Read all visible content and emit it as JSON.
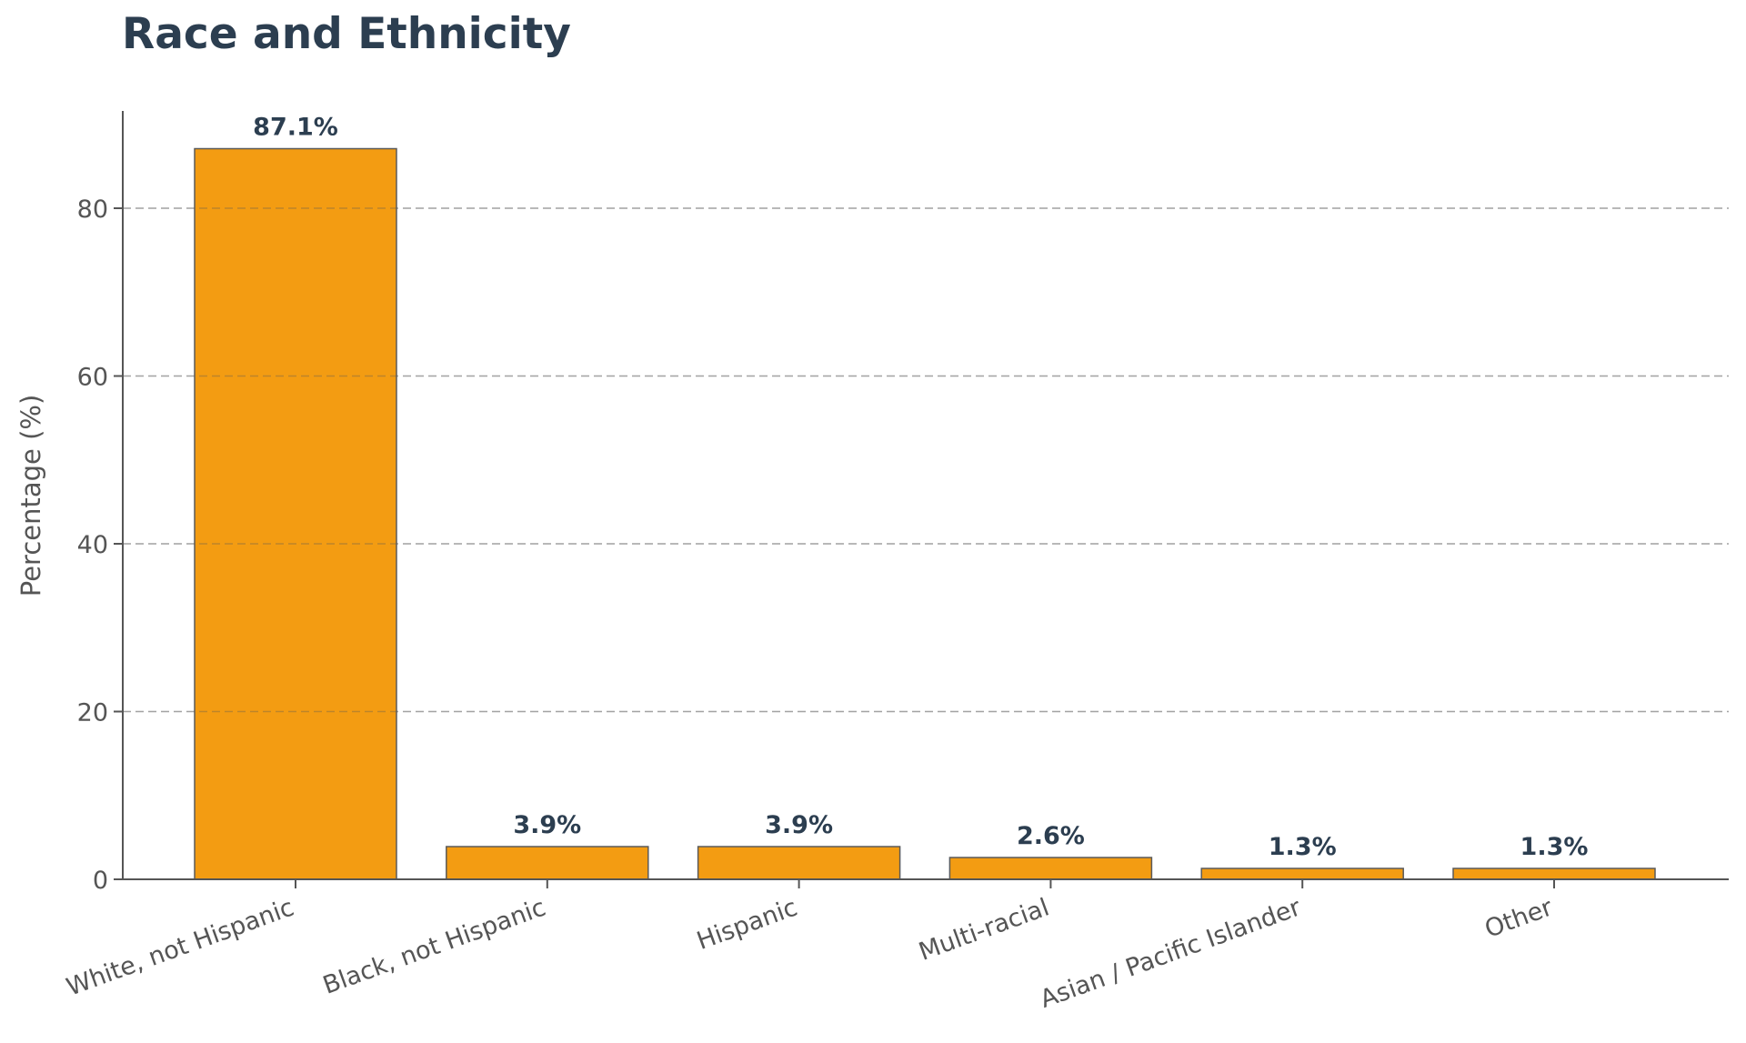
{
  "chart_data": {
    "type": "bar",
    "title": "Race and Ethnicity",
    "xlabel": "",
    "ylabel": "Percentage (%)",
    "categories": [
      "White, not Hispanic",
      "Black, not Hispanic",
      "Hispanic",
      "Multi-racial",
      "Asian / Pacific Islander",
      "Other"
    ],
    "values": [
      87.1,
      3.9,
      3.9,
      2.6,
      1.3,
      1.3
    ],
    "value_labels": [
      "87.1%",
      "3.9%",
      "3.9%",
      "2.6%",
      "1.3%",
      "1.3%"
    ],
    "ylim": [
      0,
      91.5
    ],
    "yticks": [
      0,
      20,
      40,
      60,
      80
    ],
    "ytick_labels": [
      "0",
      "20",
      "40",
      "60",
      "80"
    ],
    "grid": "horizontal dashed",
    "legend": "none",
    "colors": {
      "bar": "#f39c12",
      "bar_edge": "#5a5a5a",
      "title": "#2c3e50",
      "value_label": "#2c3e50",
      "grid": "#cccccc",
      "axis": "#555555"
    }
  }
}
